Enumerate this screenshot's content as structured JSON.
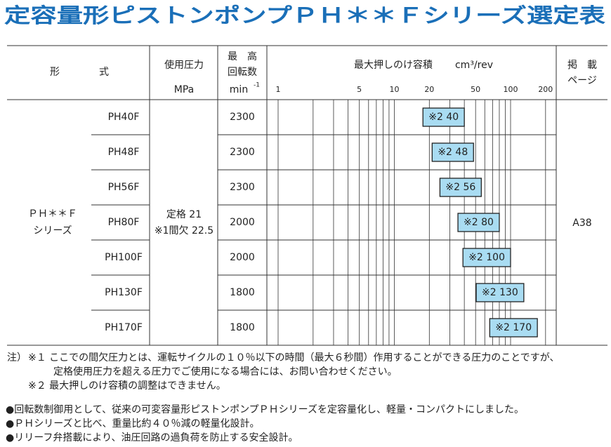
{
  "title": "定容量形ピストンポンプＰＨ＊＊Ｆシリーズ選定表",
  "header": {
    "model": "形　　　　式",
    "pressure": "使用圧力",
    "pressure_unit": "MPa",
    "speed": [
      "最　高",
      "回転数"
    ],
    "speed_unit": "min",
    "speed_unit_exp": "-1",
    "displacement": "最大押しのけ容積",
    "displacement_unit": "cm³/rev",
    "page": [
      "掲　載",
      "ページ"
    ]
  },
  "series_name": [
    "ＰＨ＊＊Ｆ",
    "シリーズ"
  ],
  "pressure": [
    "定格 21",
    "※1間欠 22.5"
  ],
  "page_ref": "A38",
  "chart": {
    "type": "bar",
    "scale": "log",
    "xlim": [
      1,
      240
    ],
    "xticks": [
      1,
      5,
      10,
      20,
      50,
      100,
      200
    ],
    "minor_xticks": [
      2,
      3,
      4,
      6,
      7,
      8,
      9,
      30,
      40,
      60,
      70,
      80,
      90
    ],
    "color": "#a9dcf2"
  },
  "rows": {
    "models": [
      "PH40F",
      "PH48F",
      "PH56F",
      "PH80F",
      "PH100F",
      "PH130F",
      "PH170F"
    ],
    "speeds": [
      2300,
      2300,
      2300,
      2000,
      2000,
      1800,
      1800
    ],
    "displacement": [
      40,
      48,
      56,
      80,
      100,
      130,
      170
    ],
    "displacement_labels": [
      "※2 40",
      "※2 48",
      "※2 56",
      "※2 80",
      "※2 100",
      "※2 130",
      "※2 170"
    ]
  },
  "note_label": "注）",
  "notes": [
    "※１ ここでの間欠圧力とは、運転サイクルの１０％以下の時間（最大６秒間）作用することができる圧力のことですが、",
    "定格使用圧力を超える圧力でご使用になる場合には、お問い合わせください。",
    "※２ 最大押しのけ容積の調整はできません。"
  ],
  "bullets": [
    "●回転数制御用として、従来の可変容量形ピストンポンプＰＨシリーズを定容量化し、軽量・コンパクトにしました。",
    "●ＰＨシリーズと比べ、重量比約４０％減の軽量化設計。",
    "●リリーフ弁搭載により、油圧回路の過負荷を防止する安全設計。"
  ]
}
